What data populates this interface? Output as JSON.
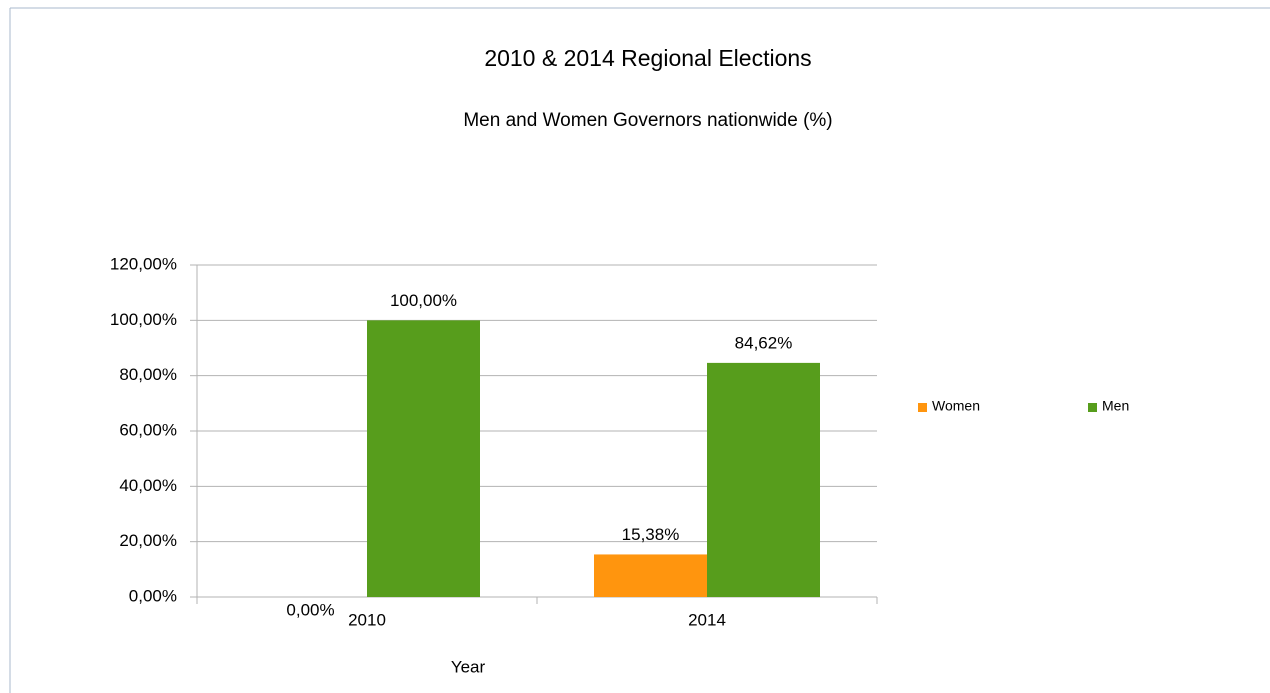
{
  "chart_data": {
    "type": "bar",
    "title": "2010 & 2014 Regional Elections",
    "subtitle": "Men and Women Governors nationwide (%)",
    "x_label": "Year",
    "categories": [
      "2010",
      "2014"
    ],
    "series": [
      {
        "name": "Women",
        "color": "#ff950e",
        "values": [
          0,
          15.38
        ],
        "value_labels": [
          "0,00%",
          "15,38%"
        ]
      },
      {
        "name": "Men",
        "color": "#579d1c",
        "values": [
          100,
          84.62
        ],
        "value_labels": [
          "100,00%",
          "84,62%"
        ]
      }
    ],
    "ylim": [
      0,
      120
    ],
    "yticks": [
      {
        "value": 0,
        "label": "0,00%"
      },
      {
        "value": 20,
        "label": "20,00%"
      },
      {
        "value": 40,
        "label": "40,00%"
      },
      {
        "value": 60,
        "label": "60,00%"
      },
      {
        "value": 80,
        "label": "80,00%"
      },
      {
        "value": 100,
        "label": "100,00%"
      },
      {
        "value": 120,
        "label": "120,00%"
      }
    ],
    "grid": true,
    "legend": "right"
  }
}
